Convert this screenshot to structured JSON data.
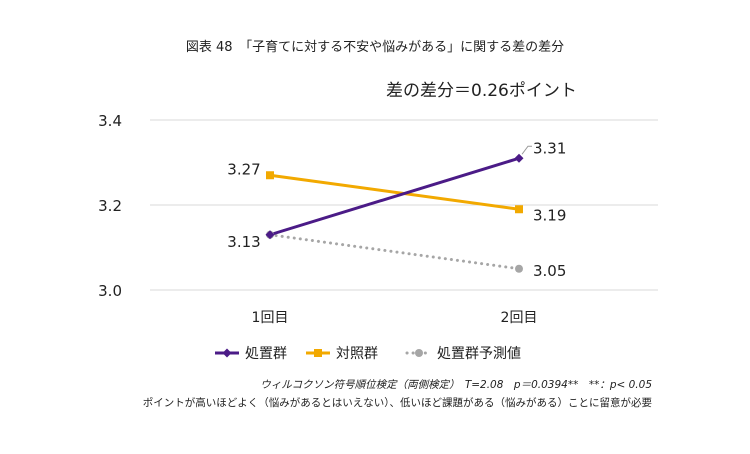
{
  "figure": {
    "title": "図表 48　「子育てに対する不安や悩みがある」に関する差の差分",
    "difference_label": "差の差分＝0.26ポイント",
    "note_test": "ウィルコクソン符号順位検定（両側検定）　T=2.08　p＝0.0394**　**：p< 0.05",
    "note_explanation": "ポイントが高いほどよく（悩みがあるとはいえない）、低いほど課題がある（悩みがある）ことに留意が必要"
  },
  "chart_data": {
    "type": "line",
    "title": "「子育てに対する不安や悩みがある」に関する差の差分",
    "categories": [
      "1回目",
      "2回目"
    ],
    "ylim": [
      3.0,
      3.4
    ],
    "yticks": [
      "3.0",
      "3.2",
      "3.4"
    ],
    "grid": true,
    "legend_position": "bottom",
    "series": [
      {
        "name": "処置群",
        "values": [
          3.13,
          3.31
        ],
        "labels": [
          "3.13",
          "3.31"
        ],
        "color": "#4B1B87",
        "marker": "diamond",
        "dashed": false
      },
      {
        "name": "対照群",
        "values": [
          3.27,
          3.19
        ],
        "labels": [
          "3.27",
          "3.19"
        ],
        "color": "#F2A900",
        "marker": "square",
        "dashed": false
      },
      {
        "name": "処置群予測値",
        "values": [
          3.13,
          3.05
        ],
        "labels": [
          "",
          "3.05"
        ],
        "color": "#A6A6A6",
        "marker": "circle",
        "dashed": true
      }
    ]
  }
}
